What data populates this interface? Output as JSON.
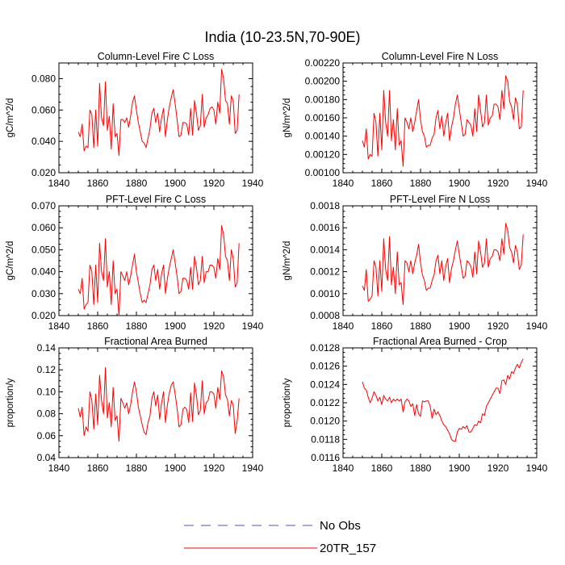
{
  "title": "India (10-23.5N,70-90E)",
  "legend": [
    {
      "label": "No Obs",
      "color": "#5050c0",
      "dashed": true
    },
    {
      "label": "20TR_157",
      "color": "#ff0000",
      "dashed": false
    }
  ],
  "chart_data": [
    {
      "type": "line",
      "title": "Column-Level Fire C Loss",
      "xlabel": "",
      "ylabel": "gC/m^2/d",
      "xlim": [
        1840,
        1940
      ],
      "ylim": [
        0.02,
        0.09
      ],
      "xticks": [
        1840,
        1860,
        1880,
        1900,
        1920,
        1940
      ],
      "xtick_labels": [
        "1840",
        "1860",
        "1880",
        "1900",
        "1920",
        "1940"
      ],
      "yticks": [
        0.02,
        0.04,
        0.06,
        0.08
      ],
      "ytick_labels": [
        "0.020",
        "0.040",
        "0.060",
        "0.080"
      ],
      "series": [
        {
          "name": "20TR_157",
          "color": "#ff0000",
          "x_start": 1850,
          "x_step": 1,
          "values": [
            0.046,
            0.043,
            0.051,
            0.034,
            0.037,
            0.036,
            0.06,
            0.057,
            0.036,
            0.06,
            0.037,
            0.077,
            0.055,
            0.05,
            0.078,
            0.047,
            0.056,
            0.035,
            0.064,
            0.043,
            0.045,
            0.031,
            0.054,
            0.054,
            0.052,
            0.055,
            0.049,
            0.056,
            0.065,
            0.069,
            0.06,
            0.052,
            0.046,
            0.04,
            0.039,
            0.036,
            0.042,
            0.048,
            0.058,
            0.061,
            0.052,
            0.058,
            0.046,
            0.055,
            0.061,
            0.043,
            0.054,
            0.062,
            0.068,
            0.073,
            0.064,
            0.054,
            0.043,
            0.044,
            0.052,
            0.052,
            0.051,
            0.044,
            0.061,
            0.044,
            0.066,
            0.058,
            0.047,
            0.05,
            0.07,
            0.049,
            0.055,
            0.057,
            0.061,
            0.062,
            0.06,
            0.051,
            0.065,
            0.058,
            0.086,
            0.08,
            0.066,
            0.064,
            0.051,
            0.069,
            0.066,
            0.045,
            0.047,
            0.07
          ]
        }
      ]
    },
    {
      "type": "line",
      "title": "Column-Level Fire N Loss",
      "xlabel": "",
      "ylabel": "gN/m^2/d",
      "xlim": [
        1840,
        1940
      ],
      "ylim": [
        0.001,
        0.0022
      ],
      "xticks": [
        1840,
        1860,
        1880,
        1900,
        1920,
        1940
      ],
      "xtick_labels": [
        "1840",
        "1860",
        "1880",
        "1900",
        "1920",
        "1940"
      ],
      "yticks": [
        0.001,
        0.0012,
        0.0014,
        0.0016,
        0.0018,
        0.002,
        0.0022
      ],
      "ytick_labels": [
        "0.00100",
        "0.00120",
        "0.00140",
        "0.00160",
        "0.00180",
        "0.00200",
        "0.00220"
      ],
      "series": [
        {
          "name": "20TR_157",
          "color": "#ff0000",
          "x_start": 1850,
          "x_step": 1,
          "values": [
            0.00135,
            0.00128,
            0.00148,
            0.00115,
            0.0012,
            0.00118,
            0.00165,
            0.00155,
            0.00118,
            0.00165,
            0.00125,
            0.0019,
            0.00155,
            0.0014,
            0.0019,
            0.00135,
            0.00158,
            0.00125,
            0.0017,
            0.0013,
            0.00135,
            0.00107,
            0.0016,
            0.00155,
            0.00148,
            0.0016,
            0.00145,
            0.00155,
            0.00168,
            0.0018,
            0.00158,
            0.00145,
            0.0014,
            0.00128,
            0.0013,
            0.0013,
            0.00138,
            0.00142,
            0.0016,
            0.00168,
            0.00148,
            0.00162,
            0.0014,
            0.00155,
            0.00165,
            0.00135,
            0.0015,
            0.0016,
            0.00175,
            0.00185,
            0.0017,
            0.00155,
            0.0014,
            0.00142,
            0.00158,
            0.00155,
            0.00152,
            0.0014,
            0.0017,
            0.00145,
            0.00185,
            0.00168,
            0.0015,
            0.00155,
            0.00185,
            0.00152,
            0.0016,
            0.00162,
            0.00175,
            0.00175,
            0.00172,
            0.00158,
            0.0019,
            0.0017,
            0.00206,
            0.002,
            0.00178,
            0.00172,
            0.00158,
            0.00182,
            0.00175,
            0.00148,
            0.0015,
            0.0019
          ]
        }
      ]
    },
    {
      "type": "line",
      "title": "PFT-Level Fire C Loss",
      "xlabel": "",
      "ylabel": "gC/m^2/d",
      "xlim": [
        1840,
        1940
      ],
      "ylim": [
        0.02,
        0.07
      ],
      "xticks": [
        1840,
        1860,
        1880,
        1900,
        1920,
        1940
      ],
      "xtick_labels": [
        "1840",
        "1860",
        "1880",
        "1900",
        "1920",
        "1940"
      ],
      "yticks": [
        0.02,
        0.03,
        0.04,
        0.05,
        0.06,
        0.07
      ],
      "ytick_labels": [
        "0.020",
        "0.030",
        "0.040",
        "0.050",
        "0.060",
        "0.070"
      ],
      "series": [
        {
          "name": "20TR_157",
          "color": "#ff0000",
          "x_start": 1850,
          "x_step": 1,
          "values": [
            0.032,
            0.03,
            0.037,
            0.023,
            0.025,
            0.026,
            0.043,
            0.04,
            0.025,
            0.043,
            0.026,
            0.053,
            0.04,
            0.036,
            0.055,
            0.033,
            0.04,
            0.025,
            0.045,
            0.03,
            0.032,
            0.02,
            0.04,
            0.038,
            0.036,
            0.04,
            0.034,
            0.038,
            0.043,
            0.048,
            0.04,
            0.035,
            0.03,
            0.026,
            0.027,
            0.026,
            0.03,
            0.034,
            0.041,
            0.043,
            0.036,
            0.041,
            0.032,
            0.039,
            0.043,
            0.03,
            0.037,
            0.042,
            0.046,
            0.05,
            0.044,
            0.038,
            0.03,
            0.031,
            0.037,
            0.037,
            0.036,
            0.032,
            0.042,
            0.032,
            0.047,
            0.042,
            0.034,
            0.036,
            0.047,
            0.035,
            0.04,
            0.04,
            0.043,
            0.043,
            0.042,
            0.037,
            0.046,
            0.041,
            0.061,
            0.057,
            0.047,
            0.045,
            0.036,
            0.05,
            0.046,
            0.033,
            0.035,
            0.053
          ]
        }
      ]
    },
    {
      "type": "line",
      "title": "PFT-Level Fire N Loss",
      "xlabel": "",
      "ylabel": "gN/m^2/d",
      "xlim": [
        1840,
        1940
      ],
      "ylim": [
        0.0008,
        0.0018
      ],
      "xticks": [
        1840,
        1860,
        1880,
        1900,
        1920,
        1940
      ],
      "xtick_labels": [
        "1840",
        "1860",
        "1880",
        "1900",
        "1920",
        "1940"
      ],
      "yticks": [
        0.0008,
        0.001,
        0.0012,
        0.0014,
        0.0016,
        0.0018
      ],
      "ytick_labels": [
        "0.0008",
        "0.0010",
        "0.0012",
        "0.0014",
        "0.0016",
        "0.0018"
      ],
      "series": [
        {
          "name": "20TR_157",
          "color": "#ff0000",
          "x_start": 1850,
          "x_step": 1,
          "values": [
            0.00107,
            0.00103,
            0.00122,
            0.00093,
            0.00095,
            0.00098,
            0.0013,
            0.00124,
            0.00098,
            0.0013,
            0.00102,
            0.0015,
            0.00122,
            0.00112,
            0.00152,
            0.00108,
            0.00124,
            0.001,
            0.00138,
            0.00108,
            0.0011,
            0.0009,
            0.0013,
            0.00128,
            0.0012,
            0.0013,
            0.00118,
            0.00128,
            0.00135,
            0.00145,
            0.00128,
            0.00117,
            0.00112,
            0.00103,
            0.00105,
            0.00105,
            0.00112,
            0.00117,
            0.0013,
            0.00135,
            0.00118,
            0.0013,
            0.00112,
            0.00125,
            0.00132,
            0.0011,
            0.00123,
            0.0013,
            0.0014,
            0.00148,
            0.00136,
            0.00125,
            0.00114,
            0.00116,
            0.0013,
            0.00128,
            0.00125,
            0.00115,
            0.00138,
            0.00118,
            0.00148,
            0.00138,
            0.00124,
            0.00128,
            0.0015,
            0.00124,
            0.00132,
            0.00134,
            0.0014,
            0.0014,
            0.00138,
            0.0013,
            0.0015,
            0.00136,
            0.00164,
            0.00158,
            0.00142,
            0.00138,
            0.00128,
            0.00144,
            0.00138,
            0.00122,
            0.00126,
            0.00154
          ]
        }
      ]
    },
    {
      "type": "line",
      "title": "Fractional Area Burned",
      "xlabel": "",
      "ylabel": "proportion/y",
      "xlim": [
        1840,
        1940
      ],
      "ylim": [
        0.04,
        0.14
      ],
      "xticks": [
        1840,
        1860,
        1880,
        1900,
        1920,
        1940
      ],
      "xtick_labels": [
        "1840",
        "1860",
        "1880",
        "1900",
        "1920",
        "1940"
      ],
      "yticks": [
        0.04,
        0.06,
        0.08,
        0.1,
        0.12,
        0.14
      ],
      "ytick_labels": [
        "0.04",
        "0.06",
        "0.08",
        "0.10",
        "0.12",
        "0.14"
      ],
      "series": [
        {
          "name": "20TR_157",
          "color": "#ff0000",
          "x_start": 1850,
          "x_step": 1,
          "values": [
            0.085,
            0.077,
            0.086,
            0.06,
            0.068,
            0.064,
            0.1,
            0.092,
            0.066,
            0.098,
            0.07,
            0.115,
            0.092,
            0.08,
            0.122,
            0.076,
            0.09,
            0.068,
            0.104,
            0.074,
            0.078,
            0.055,
            0.094,
            0.09,
            0.085,
            0.09,
            0.08,
            0.088,
            0.1,
            0.109,
            0.1,
            0.086,
            0.078,
            0.07,
            0.063,
            0.061,
            0.072,
            0.078,
            0.094,
            0.1,
            0.087,
            0.097,
            0.075,
            0.09,
            0.1,
            0.072,
            0.088,
            0.099,
            0.106,
            0.109,
            0.098,
            0.085,
            0.068,
            0.07,
            0.084,
            0.086,
            0.084,
            0.072,
            0.099,
            0.073,
            0.108,
            0.097,
            0.079,
            0.083,
            0.11,
            0.08,
            0.09,
            0.092,
            0.1,
            0.1,
            0.098,
            0.085,
            0.104,
            0.093,
            0.119,
            0.114,
            0.097,
            0.093,
            0.078,
            0.092,
            0.088,
            0.062,
            0.073,
            0.094
          ]
        }
      ]
    },
    {
      "type": "line",
      "title": "Fractional Area Burned - Crop",
      "xlabel": "",
      "ylabel": "proportion/y",
      "xlim": [
        1840,
        1940
      ],
      "ylim": [
        0.0116,
        0.0128
      ],
      "xticks": [
        1840,
        1860,
        1880,
        1900,
        1920,
        1940
      ],
      "xtick_labels": [
        "1840",
        "1860",
        "1880",
        "1900",
        "1920",
        "1940"
      ],
      "yticks": [
        0.0116,
        0.0118,
        0.012,
        0.0122,
        0.0124,
        0.0126,
        0.0128
      ],
      "ytick_labels": [
        "0.0116",
        "0.0118",
        "0.0120",
        "0.0122",
        "0.0124",
        "0.0126",
        "0.0128"
      ],
      "series": [
        {
          "name": "20TR_157",
          "color": "#ff0000",
          "x_start": 1850,
          "x_step": 1,
          "values": [
            0.01243,
            0.01236,
            0.01234,
            0.01226,
            0.0122,
            0.01225,
            0.01232,
            0.01228,
            0.01222,
            0.01226,
            0.01218,
            0.01228,
            0.01224,
            0.01222,
            0.01226,
            0.0122,
            0.01224,
            0.01222,
            0.01224,
            0.01222,
            0.01224,
            0.0121,
            0.01221,
            0.01224,
            0.01222,
            0.01216,
            0.01219,
            0.01206,
            0.01218,
            0.01208,
            0.01205,
            0.01222,
            0.01221,
            0.01222,
            0.01222,
            0.01216,
            0.01203,
            0.01213,
            0.01207,
            0.0121,
            0.01206,
            0.012,
            0.01196,
            0.01194,
            0.0119,
            0.01186,
            0.0118,
            0.01178,
            0.01178,
            0.01188,
            0.01192,
            0.01191,
            0.01194,
            0.01192,
            0.01195,
            0.01188,
            0.01188,
            0.01192,
            0.01196,
            0.01195,
            0.012,
            0.01198,
            0.01208,
            0.01206,
            0.01216,
            0.0122,
            0.01224,
            0.01228,
            0.01232,
            0.01236,
            0.01236,
            0.0123,
            0.01244,
            0.01245,
            0.0124,
            0.0125,
            0.01246,
            0.01254,
            0.01252,
            0.01258,
            0.01262,
            0.01258,
            0.01264,
            0.01268
          ]
        }
      ]
    }
  ]
}
